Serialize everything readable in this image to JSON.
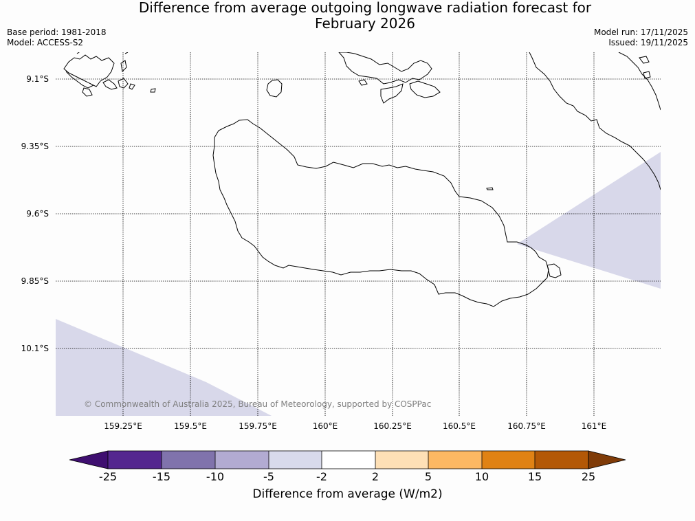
{
  "title": {
    "line1": "Difference from average outgoing longwave radiation forecast for",
    "line2": "February 2026"
  },
  "meta": {
    "base_period": "Base period: 1981-2018",
    "model": "Model: ACCESS-S2",
    "model_run": "Model run: 17/11/2025",
    "issued": "Issued: 19/11/2025"
  },
  "map": {
    "lat_labels": [
      "9.1°S",
      "9.35°S",
      "9.6°S",
      "9.85°S",
      "10.1°S"
    ],
    "lon_labels": [
      "159.25°E",
      "159.5°E",
      "159.75°E",
      "160°E",
      "160.25°E",
      "160.5°E",
      "160.75°E",
      "161°E"
    ],
    "copyright": "© Commonwealth of Australia 2025, Bureau of Meteorology, supported by COSPPac",
    "anomaly_fill_color": "#d8d8ea",
    "anomaly_fill_class": "-5 to -2 W/m2"
  },
  "colorbar": {
    "ticks": [
      "-25",
      "-15",
      "-10",
      "-5",
      "-2",
      "2",
      "5",
      "10",
      "15",
      "25"
    ],
    "colors": [
      "#3f0f70",
      "#54278f",
      "#8073ac",
      "#b2abd2",
      "#d8daeb",
      "#ffffff",
      "#fee0b6",
      "#fdb863",
      "#e08214",
      "#b35806",
      "#7f3b08"
    ],
    "label": "Difference from average (W/m2)"
  }
}
